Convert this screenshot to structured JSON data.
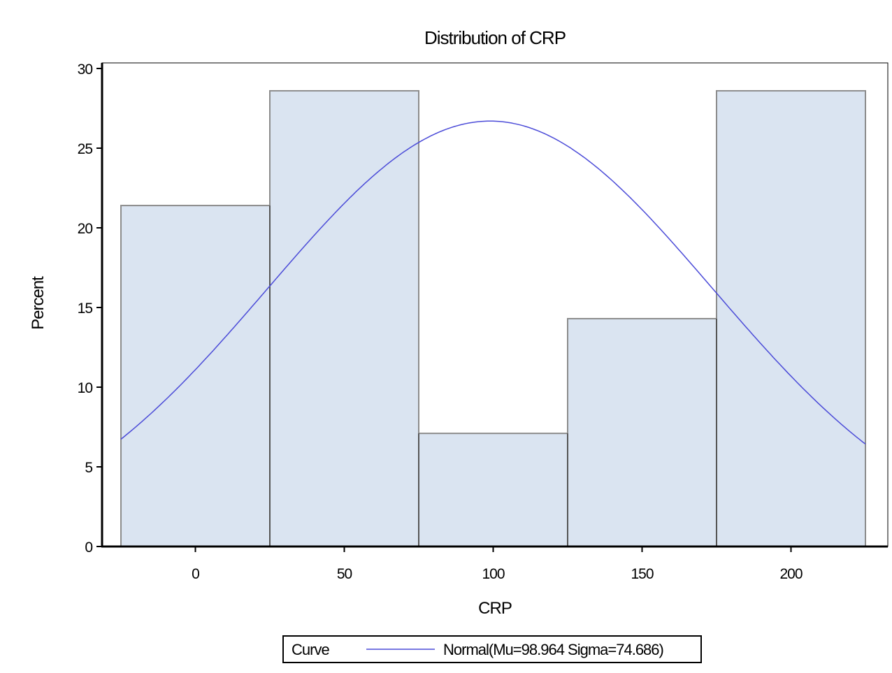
{
  "chart_data": {
    "type": "bar",
    "title": "Distribution of CRP",
    "xlabel": "CRP",
    "ylabel": "Percent",
    "xlim": [
      -25,
      225
    ],
    "ylim": [
      0,
      30
    ],
    "x_ticks": [
      0,
      50,
      100,
      150,
      200
    ],
    "y_ticks": [
      0,
      5,
      10,
      15,
      20,
      25,
      30
    ],
    "bins": [
      {
        "start": -25,
        "end": 25,
        "value": 21.4
      },
      {
        "start": 25,
        "end": 75,
        "value": 28.6
      },
      {
        "start": 75,
        "end": 125,
        "value": 7.1
      },
      {
        "start": 125,
        "end": 175,
        "value": 14.3
      },
      {
        "start": 175,
        "end": 225,
        "value": 28.6
      }
    ],
    "curve": {
      "type": "normal",
      "mu": 98.964,
      "sigma": 74.686,
      "peak": 26.7
    },
    "legend": {
      "title": "Curve",
      "entry": "Normal(Mu=98.964 Sigma=74.686)",
      "placement": "bottom-center"
    },
    "grid": false,
    "colors": {
      "bar_fill": "#dae4f1",
      "bar_stroke": "#8c8c8c",
      "curve": "#4b4bd8",
      "axis": "#000000"
    }
  }
}
